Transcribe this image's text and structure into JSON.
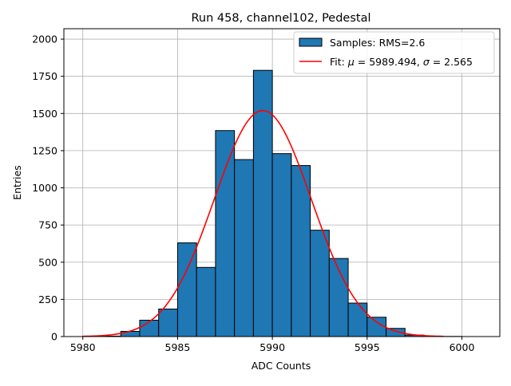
{
  "chart_data": {
    "type": "bar",
    "title": "Run 458, channel102, Pedestal",
    "xlabel": "ADC Counts",
    "ylabel": "Entries",
    "xlim": [
      5979,
      6002
    ],
    "ylim": [
      0,
      2070
    ],
    "xticks": [
      5980,
      5985,
      5990,
      5995,
      6000
    ],
    "yticks": [
      0,
      250,
      500,
      750,
      1000,
      1250,
      1500,
      1750,
      2000
    ],
    "grid": true,
    "legend_position": "top-right",
    "bin_width": 1,
    "bin_color": "#1f77b4",
    "fit_color": "#ff0000",
    "bins": [
      {
        "x": 5980,
        "value": 2
      },
      {
        "x": 5981,
        "value": 3
      },
      {
        "x": 5982,
        "value": 35
      },
      {
        "x": 5983,
        "value": 110
      },
      {
        "x": 5984,
        "value": 185
      },
      {
        "x": 5985,
        "value": 630
      },
      {
        "x": 5986,
        "value": 465
      },
      {
        "x": 5987,
        "value": 1385
      },
      {
        "x": 5988,
        "value": 1190
      },
      {
        "x": 5989,
        "value": 1790
      },
      {
        "x": 5990,
        "value": 1230
      },
      {
        "x": 5991,
        "value": 1150
      },
      {
        "x": 5992,
        "value": 715
      },
      {
        "x": 5993,
        "value": 525
      },
      {
        "x": 5994,
        "value": 225
      },
      {
        "x": 5995,
        "value": 130
      },
      {
        "x": 5996,
        "value": 55
      },
      {
        "x": 5997,
        "value": 10
      },
      {
        "x": 5998,
        "value": 2
      },
      {
        "x": 5999,
        "value": 1
      }
    ],
    "fit": {
      "mu": 5989.494,
      "sigma": 2.565,
      "amplitude": 1520,
      "x_range": [
        5980,
        5999
      ]
    },
    "legend": {
      "samples_label": "Samples: RMS=2.6",
      "fit_prefix": "Fit: ",
      "mu_symbol": "μ",
      "mu_text": " = 5989.494, ",
      "sigma_symbol": "σ",
      "sigma_text": " = 2.565"
    }
  }
}
